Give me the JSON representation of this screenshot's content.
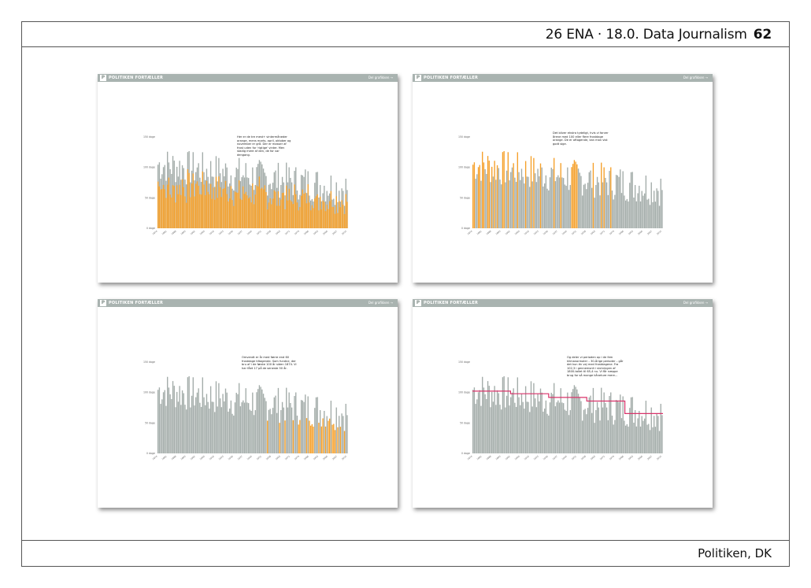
{
  "header": {
    "title": "26 ENA · 18.0. Data Journalism",
    "page_number": "62"
  },
  "footer": {
    "source": "Politiken, DK"
  },
  "panel_header": {
    "brand": "POLITIKEN FORTÆLLER",
    "logo": "P",
    "share": "Del grafikken →"
  },
  "colors": {
    "grey_bar": "#a3aca9",
    "orange": "#f5a02a",
    "red_line": "#d8336a",
    "header_grey": "#a9b3b0"
  },
  "panels": [
    {
      "note": "Her er de tre mest+ vintermåneder orange, mens marts, april, oktober og november er grå. Der er masser af frost uden for 'rigtige' vinter. Men stadig mere af den, de for var dengang.",
      "chart_data": {
        "type": "bar",
        "x_range": [
          1874,
          2014
        ],
        "ylim": [
          0,
          150
        ],
        "yticks": [
          "0 dage",
          "50 dage",
          "100 dage",
          "150 dage"
        ],
        "series": [
          {
            "name": "",
            "color": "#a3aca9"
          },
          {
            "name": "",
            "color": "#f5a02a"
          }
        ]
      }
    },
    {
      "note": "Det bliver ekstra tydeligt, hvis vi farver årene med 100 eller flere frostdage orange. De er aftagende, kan man vist godt sige.",
      "chart_data": {
        "type": "bar",
        "x_range": [
          1874,
          2014
        ],
        "ylim": [
          0,
          150
        ],
        "yticks": [
          "0 dage",
          "50 dage",
          "100 dage",
          "150 dage"
        ]
      }
    },
    {
      "note": "Omvendt er år med færre end 60 frostdage tiltagende. Som fundne, der bru af i de første 100 år siden 1874. Vi har fået 17 på de seneste 50 år.",
      "chart_data": {
        "type": "bar",
        "x_range": [
          1874,
          2014
        ],
        "ylim": [
          0,
          150
        ],
        "yticks": [
          "0 dage",
          "50 dage",
          "100 dage",
          "150 dage"
        ]
      }
    },
    {
      "note": "Og deler vi perioden op i de fem klimanormaler – 30-årige perioder – går det kun én vej med frostdagene. Fra 102,3 i gennemsnit i slutningen af 1800-tallet til 65,4 nu. Vi får næppe brug for så mange kåneture mere…",
      "chart_data": {
        "type": "bar",
        "x_range": [
          1874,
          2014
        ],
        "ylim": [
          0,
          150
        ],
        "yticks": [
          "0 dage",
          "50 dage",
          "100 dage",
          "150 dage"
        ],
        "normal_averages": [
          102.3,
          98,
          92,
          86,
          65.4
        ]
      }
    }
  ]
}
